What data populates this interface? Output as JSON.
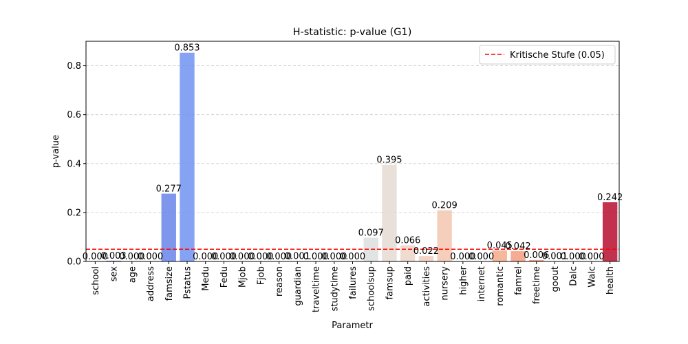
{
  "chart_data": {
    "type": "bar",
    "title": "H-statistic: p-value (G1)",
    "xlabel": "Parametr",
    "ylabel": "p-value",
    "ylim": [
      0,
      0.9
    ],
    "yticks": [
      "0.0",
      "0.2",
      "0.4",
      "0.6",
      "0.8"
    ],
    "ytick_values": [
      0,
      0.2,
      0.4,
      0.6,
      0.8
    ],
    "grid": "horizontal dashed",
    "categories": [
      "school",
      "sex",
      "age",
      "address",
      "famsize",
      "Pstatus",
      "Medu",
      "Fedu",
      "Mjob",
      "Fjob",
      "reason",
      "guardian",
      "traveltime",
      "studytime",
      "failures",
      "schoolsup",
      "famsup",
      "paid",
      "activities",
      "nursery",
      "higher",
      "internet",
      "romantic",
      "famrel",
      "freetime",
      "goout",
      "Dalc",
      "Walc",
      "health"
    ],
    "values": [
      0.0,
      0.003,
      0.0,
      0.0,
      0.277,
      0.853,
      0.0,
      0.0,
      0.0,
      0.0,
      0.0,
      0.001,
      0.0,
      0.0,
      0.0,
      0.097,
      0.395,
      0.066,
      0.022,
      0.209,
      0.0,
      0.0,
      0.045,
      0.042,
      0.006,
      0.001,
      0.0,
      0.0,
      0.242
    ],
    "value_labels": [
      "0.000",
      "0.003",
      "0.000",
      "0.000",
      "0.277",
      "0.853",
      "0.000",
      "0.000",
      "0.000",
      "0.000",
      "0.000",
      "0.001",
      "0.000",
      "0.000",
      "0.000",
      "0.097",
      "0.395",
      "0.066",
      "0.022",
      "0.209",
      "0.000",
      "0.000",
      "0.045",
      "0.042",
      "0.006",
      "0.001",
      "0.000",
      "0.000",
      "0.242"
    ],
    "palette": "coolwarm",
    "colors": [
      "#3b4cc0",
      "#4358cb",
      "#4c66d6",
      "#5572df",
      "#6180e9",
      "#6b8df0",
      "#779af7",
      "#82a6fb",
      "#8fb1fe",
      "#9bbcff",
      "#a7c5fe",
      "#b3cdfb",
      "#bfd3f6",
      "#c9d7f0",
      "#d3dbe7",
      "#dcdddd",
      "#e4d9d2",
      "#ebd3c6",
      "#f1ccb8",
      "#f4c5ad",
      "#f6bda2",
      "#f7b396",
      "#f5a788",
      "#f39a7b",
      "#ef8d6e",
      "#e97f62",
      "#e16e56",
      "#d85c4c",
      "#b40426"
    ],
    "threshold": {
      "value": 0.05,
      "label": "Kritische Stufe (0.05)",
      "color": "#ff0000"
    },
    "legend_position": "top-right"
  }
}
